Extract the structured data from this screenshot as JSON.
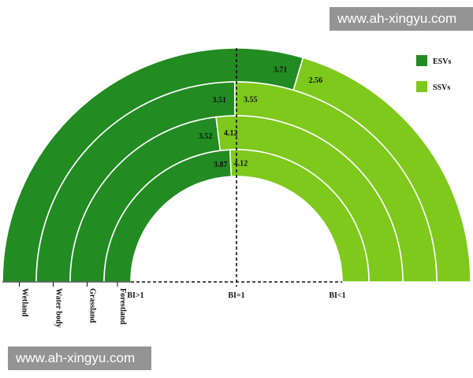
{
  "watermark": {
    "top": "www.ah-xingyu.com",
    "bottom": "www.ah-xingyu.com"
  },
  "chart_data": {
    "type": "semicircular-stacked-bar",
    "rings_outer_to_inner": [
      "Wetland",
      "Water body",
      "Grassland",
      "Forestland"
    ],
    "series": [
      {
        "name": "ESVs",
        "color": "#228b22",
        "values": [
          3.71,
          3.51,
          3.52,
          3.87
        ]
      },
      {
        "name": "SSVs",
        "color": "#7ec91c",
        "values": [
          2.56,
          3.55,
          4.12,
          4.12
        ]
      }
    ],
    "baseline_labels": [
      "BI>1",
      "BI=1",
      "BI<1"
    ],
    "legend": {
      "position": "top-right",
      "items": [
        "ESVs",
        "SSVs"
      ]
    }
  }
}
